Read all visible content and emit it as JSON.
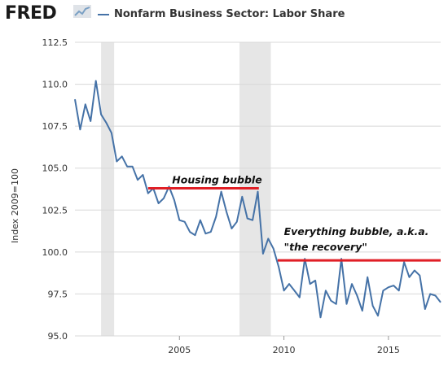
{
  "header": {
    "logo_text": "FRED",
    "title": "Nonfarm Business Sector: Labor Share"
  },
  "chart_data": {
    "type": "line",
    "title": "Nonfarm Business Sector: Labor Share",
    "ylabel": "Index 2009=100",
    "xlabel": "",
    "xlim": [
      2000.0,
      2017.5
    ],
    "ylim": [
      95.0,
      112.5
    ],
    "x_ticks": [
      2005,
      2010,
      2015
    ],
    "y_ticks": [
      95.0,
      97.5,
      100.0,
      102.5,
      105.0,
      107.5,
      110.0,
      112.5
    ],
    "y_tick_labels": [
      "95.0",
      "97.5",
      "100.0",
      "102.5",
      "105.0",
      "107.5",
      "110.0",
      "112.5"
    ],
    "grid": "horizontal",
    "series_color": "#4572A7",
    "recession_color": "#e6e6e6",
    "recessions": [
      [
        2001.25,
        2001.875
      ],
      [
        2007.875,
        2009.375
      ]
    ],
    "series": [
      {
        "name": "Nonfarm Business Sector: Labor Share",
        "x": [
          2000.0,
          2000.25,
          2000.5,
          2000.75,
          2001.0,
          2001.25,
          2001.5,
          2001.75,
          2002.0,
          2002.25,
          2002.5,
          2002.75,
          2003.0,
          2003.25,
          2003.5,
          2003.75,
          2004.0,
          2004.25,
          2004.5,
          2004.75,
          2005.0,
          2005.25,
          2005.5,
          2005.75,
          2006.0,
          2006.25,
          2006.5,
          2006.75,
          2007.0,
          2007.25,
          2007.5,
          2007.75,
          2008.0,
          2008.25,
          2008.5,
          2008.75,
          2009.0,
          2009.25,
          2009.5,
          2009.75,
          2010.0,
          2010.25,
          2010.5,
          2010.75,
          2011.0,
          2011.25,
          2011.5,
          2011.75,
          2012.0,
          2012.25,
          2012.5,
          2012.75,
          2013.0,
          2013.25,
          2013.5,
          2013.75,
          2014.0,
          2014.25,
          2014.5,
          2014.75,
          2015.0,
          2015.25,
          2015.5,
          2015.75,
          2016.0,
          2016.25,
          2016.5,
          2016.75,
          2017.0,
          2017.25,
          2017.5
        ],
        "values": [
          109.1,
          107.3,
          108.8,
          107.8,
          110.2,
          108.2,
          107.7,
          107.1,
          105.4,
          105.7,
          105.1,
          105.1,
          104.3,
          104.6,
          103.5,
          103.8,
          102.9,
          103.2,
          103.9,
          103.1,
          101.9,
          101.8,
          101.2,
          101.0,
          101.9,
          101.1,
          101.2,
          102.1,
          103.6,
          102.4,
          101.4,
          101.8,
          103.3,
          102.0,
          101.9,
          103.6,
          99.9,
          100.8,
          100.2,
          99.1,
          97.7,
          98.1,
          97.7,
          97.3,
          99.6,
          98.1,
          98.3,
          96.1,
          97.7,
          97.1,
          96.9,
          99.6,
          96.9,
          98.1,
          97.4,
          96.5,
          98.5,
          96.8,
          96.2,
          97.7,
          97.9,
          98.0,
          97.7,
          99.4,
          98.5,
          98.9,
          98.6,
          96.6,
          97.5,
          97.4,
          97.0
        ]
      }
    ],
    "annotations": [
      {
        "text": "Housing bubble",
        "line": {
          "x1": 2003.5,
          "x2": 2008.8,
          "y": 103.8
        },
        "text_x": 2004.65,
        "text_y": 104.1
      },
      {
        "text": "Everything bubble, a.k.a.",
        "line": {
          "x1": 2009.7,
          "x2": 2017.5,
          "y": 99.5
        },
        "text_x": 2010.0,
        "text_y": 101.0
      },
      {
        "text": "\"the recovery\"",
        "text_x": 2010.0,
        "text_y": 100.1
      }
    ],
    "annotation_color": "#e01f26"
  }
}
